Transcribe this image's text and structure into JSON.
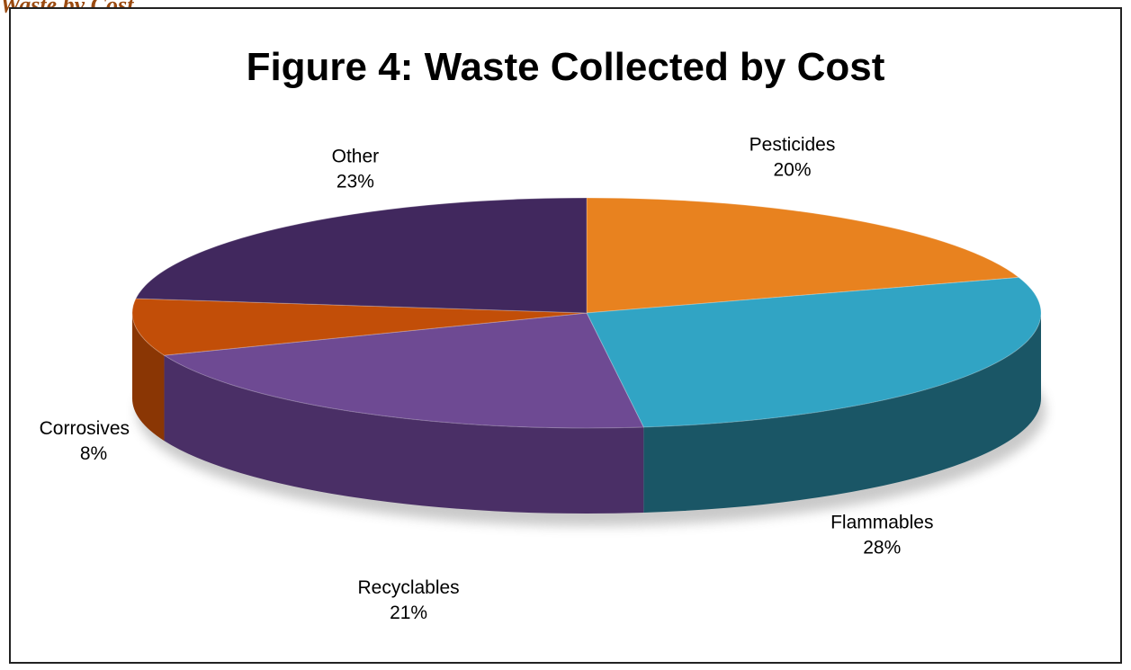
{
  "document": {
    "heading_fragment": "Waste by Cost"
  },
  "chart_data": {
    "type": "pie",
    "style": "3d",
    "title": "Figure 4:  Waste Collected by Cost",
    "categories": [
      "Pesticides",
      "Flammables",
      "Recyclables",
      "Corrosives",
      "Other"
    ],
    "values": [
      20,
      28,
      21,
      8,
      23
    ],
    "value_labels": [
      "20%",
      "28%",
      "21%",
      "8%",
      "23%"
    ],
    "colors": [
      "#E8821F",
      "#31A4C4",
      "#6E4A93",
      "#C24E08",
      "#41285E"
    ],
    "side_colors": [
      "#9A5412",
      "#1A5666",
      "#4A2F66",
      "#8A3604",
      "#2A1A40"
    ],
    "legend": "none"
  }
}
